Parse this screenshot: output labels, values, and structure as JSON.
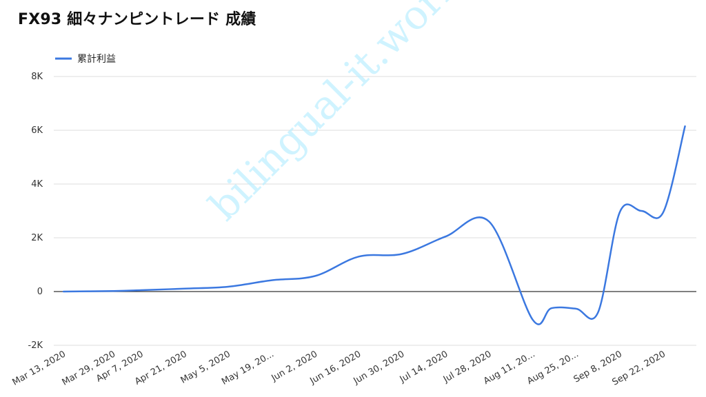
{
  "chart_data": {
    "type": "line",
    "title": "FX93 細々ナンピントレード 成績",
    "legend": {
      "position": "top-left",
      "entries": [
        "累計利益"
      ]
    },
    "grid": true,
    "ylim": [
      -2000,
      8000
    ],
    "yticks": [
      {
        "value": -2000,
        "label": "-2K"
      },
      {
        "value": 0,
        "label": "0"
      },
      {
        "value": 2000,
        "label": "2K"
      },
      {
        "value": 4000,
        "label": "4K"
      },
      {
        "value": 6000,
        "label": "6K"
      },
      {
        "value": 8000,
        "label": "8K"
      }
    ],
    "xticks": [
      "Mar 13, 2020",
      "Mar 29, 2020",
      "Apr 7, 2020",
      "Apr 21, 2020",
      "May 5, 2020",
      "May 19, 20...",
      "Jun 2, 2020",
      "Jun 16, 2020",
      "Jun 30, 2020",
      "Jul 14, 2020",
      "Jul 28, 2020",
      "Aug 11, 20...",
      "Aug 25, 20...",
      "Sep 8, 2020",
      "Sep 22, 2020"
    ],
    "series": [
      {
        "name": "累計利益",
        "color": "#3b78e0",
        "points": [
          {
            "x": "Mar 13, 2020",
            "y": 0
          },
          {
            "x": "Mar 29, 2020",
            "y": 20
          },
          {
            "x": "Apr 7, 2020",
            "y": 50
          },
          {
            "x": "Apr 21, 2020",
            "y": 110
          },
          {
            "x": "May 5, 2020",
            "y": 180
          },
          {
            "x": "May 19, 2020",
            "y": 420
          },
          {
            "x": "Jun 2, 2020",
            "y": 580
          },
          {
            "x": "Jun 16, 2020",
            "y": 1300
          },
          {
            "x": "Jun 30, 2020",
            "y": 1400
          },
          {
            "x": "Jul 14, 2020",
            "y": 2050
          },
          {
            "x": "Jul 28, 2020",
            "y": 2600
          },
          {
            "x": "Aug 11, 2020",
            "y": -1050
          },
          {
            "x": "Aug 17, 2020",
            "y": -620
          },
          {
            "x": "Aug 25, 2020",
            "y": -640
          },
          {
            "x": "Sep 1, 2020",
            "y": -780
          },
          {
            "x": "Sep 8, 2020",
            "y": 2950
          },
          {
            "x": "Sep 15, 2020",
            "y": 3000
          },
          {
            "x": "Sep 22, 2020",
            "y": 2950
          },
          {
            "x": "Sep 29, 2020",
            "y": 6150
          }
        ]
      }
    ]
  },
  "watermark": "bilingual-it.work"
}
